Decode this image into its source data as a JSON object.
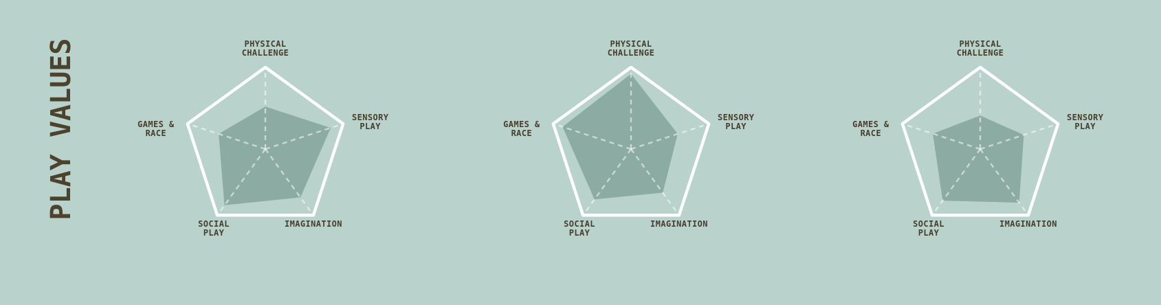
{
  "title": "PLAY VALUES",
  "colors": {
    "background": "#b9d2cc",
    "radar_fill": "#8caba3",
    "radar_outline": "#fcfdfc",
    "radar_spoke": "rgba(255,255,255,0.55)",
    "title_text": "#4c432f",
    "label_text": "#473e2d"
  },
  "chart_data": {
    "type": "radar",
    "title": "PLAY VALUES",
    "axes": [
      "PHYSICAL CHALLENGE",
      "SENSORY PLAY",
      "IMAGINATION",
      "SOCIAL PLAY",
      "GAMES & RACE"
    ],
    "axis_label_lines": [
      [
        "PHYSICAL",
        "CHALLENGE"
      ],
      [
        "SENSORY",
        "PLAY"
      ],
      [
        "IMAGINATION"
      ],
      [
        "SOCIAL",
        "PLAY"
      ],
      [
        "GAMES &",
        "RACE"
      ]
    ],
    "axis_range": [
      0,
      1
    ],
    "grid": "pentagon-outline-with-dashed-spokes",
    "legend": "none",
    "series": [
      {
        "name": "radar-1",
        "values": [
          0.52,
          0.84,
          0.73,
          0.85,
          0.6
        ]
      },
      {
        "name": "radar-2",
        "values": [
          0.92,
          0.6,
          0.66,
          0.76,
          0.88
        ]
      },
      {
        "name": "radar-3",
        "values": [
          0.41,
          0.56,
          0.81,
          0.78,
          0.61
        ]
      }
    ]
  }
}
